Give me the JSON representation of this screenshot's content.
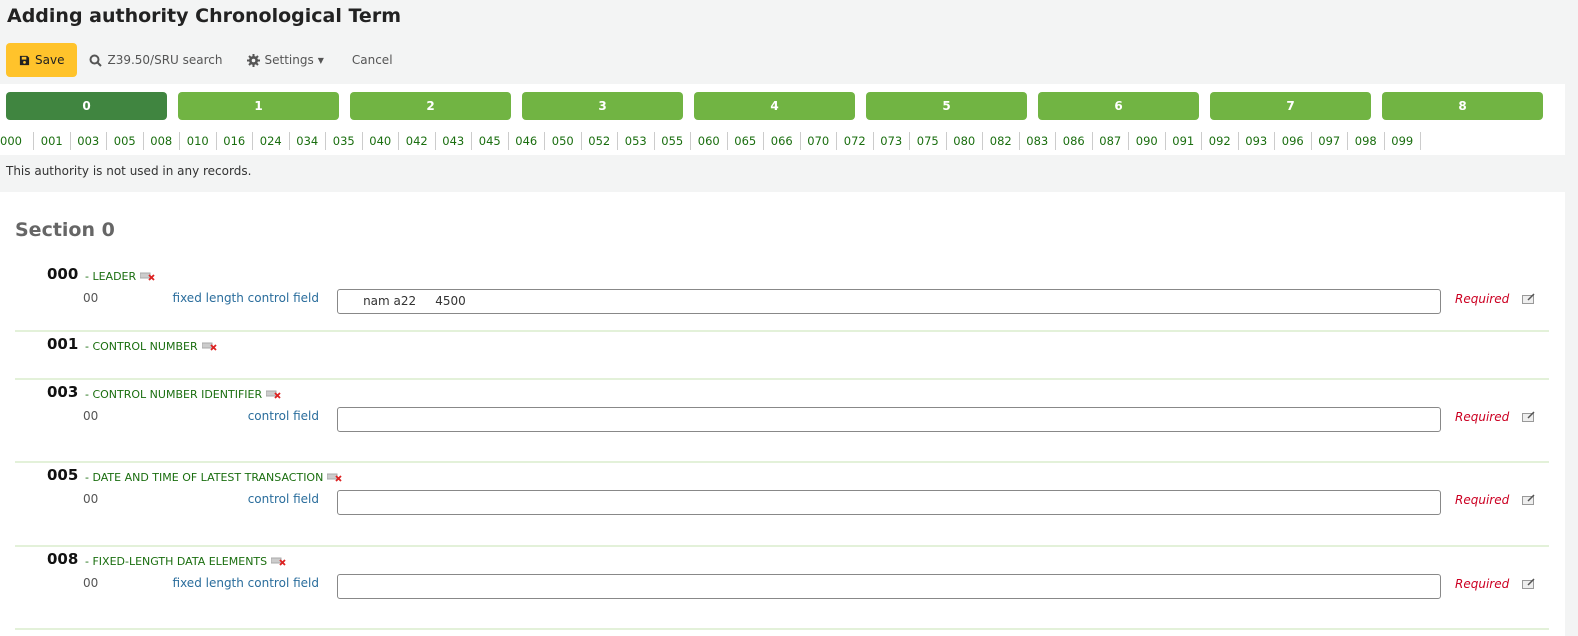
{
  "title": "Adding authority Chronological Term",
  "toolbar": {
    "save": "Save",
    "search": "Z39.50/SRU search",
    "settings": "Settings",
    "cancel": "Cancel"
  },
  "tabs": [
    "0",
    "1",
    "2",
    "3",
    "4",
    "5",
    "6",
    "7",
    "8"
  ],
  "active_tab": "0",
  "field_links": [
    "000",
    "001",
    "003",
    "005",
    "008",
    "010",
    "016",
    "024",
    "034",
    "035",
    "040",
    "042",
    "043",
    "045",
    "046",
    "050",
    "052",
    "053",
    "055",
    "060",
    "065",
    "066",
    "070",
    "072",
    "073",
    "075",
    "080",
    "082",
    "083",
    "086",
    "087",
    "090",
    "091",
    "092",
    "093",
    "096",
    "097",
    "098",
    "099"
  ],
  "message": "This authority is not used in any records.",
  "section_title": "Section 0",
  "fields": [
    {
      "tag": "000",
      "desc": "- LEADER",
      "sub": "00",
      "label": "fixed length control field",
      "value": "     nam a22     4500",
      "required": "Required"
    },
    {
      "tag": "001",
      "desc": "- CONTROL NUMBER"
    },
    {
      "tag": "003",
      "desc": "- CONTROL NUMBER IDENTIFIER",
      "sub": "00",
      "label": "control field",
      "value": "",
      "required": "Required"
    },
    {
      "tag": "005",
      "desc": "- DATE AND TIME OF LATEST TRANSACTION",
      "sub": "00",
      "label": "control field",
      "value": "",
      "required": "Required"
    },
    {
      "tag": "008",
      "desc": "- FIXED-LENGTH DATA ELEMENTS",
      "sub": "00",
      "label": "fixed length control field",
      "value": "",
      "required": "Required"
    }
  ],
  "colors": {
    "save": "#ffc32b",
    "tab": "#71b443",
    "tab_active": "#408540",
    "required": "#cc0022",
    "link": "#1a6e0f"
  }
}
